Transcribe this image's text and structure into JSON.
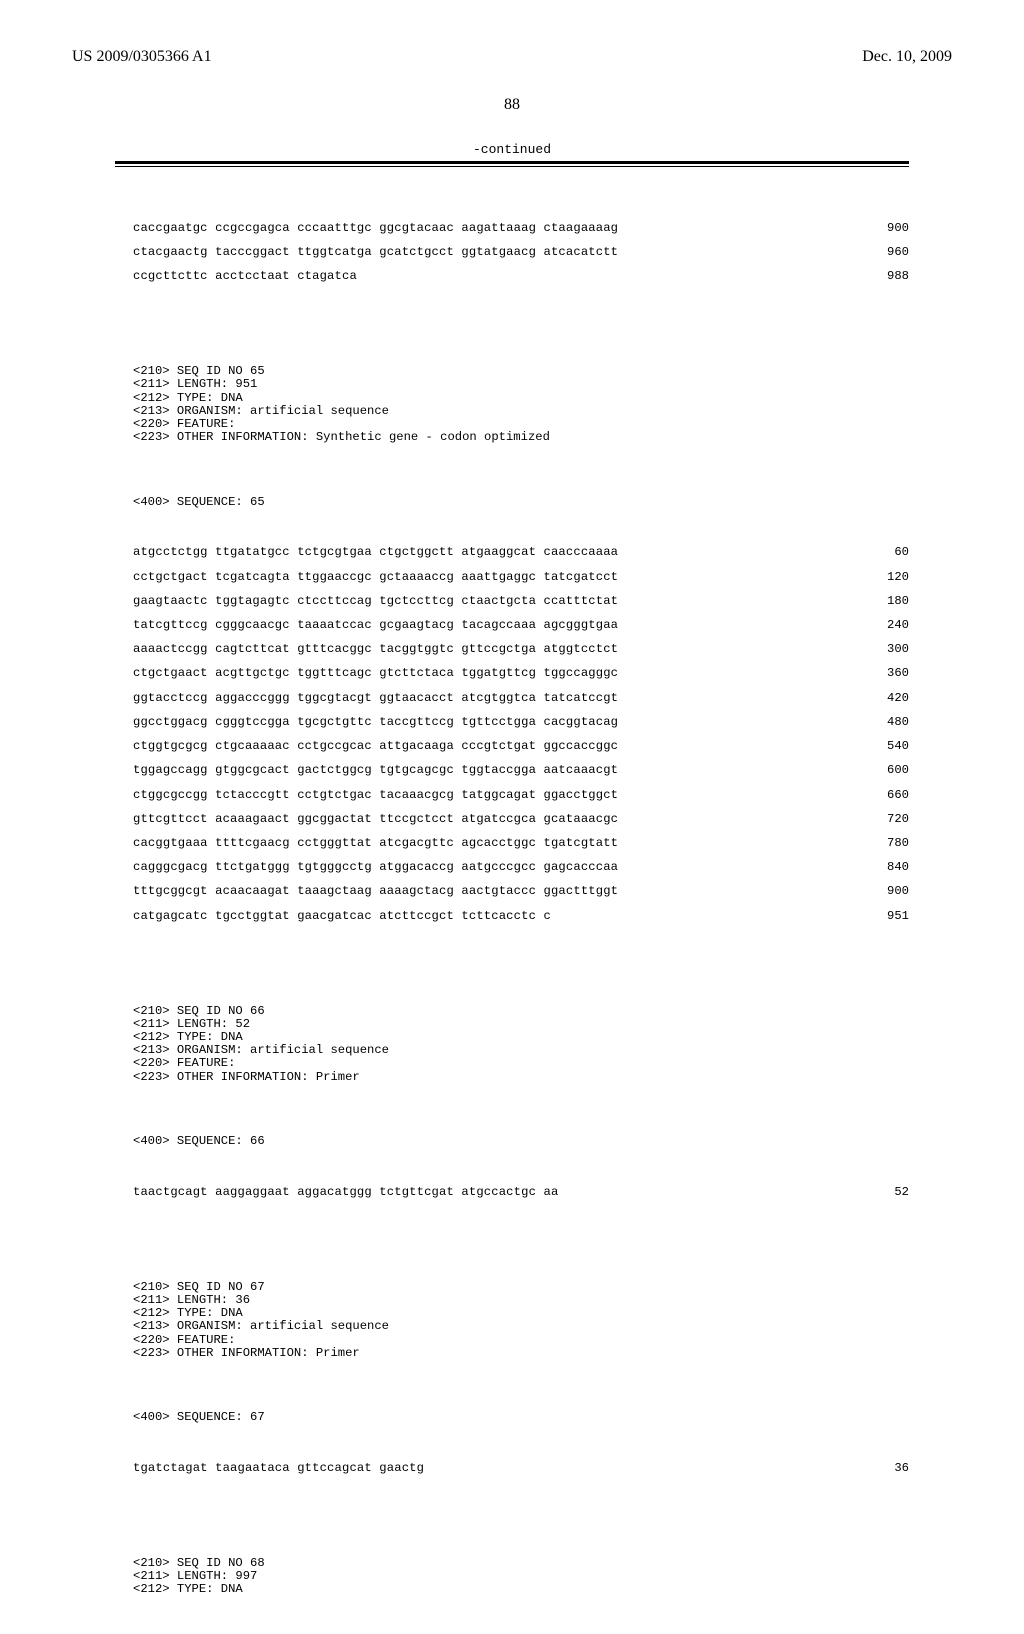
{
  "header": {
    "pubno": "US 2009/0305366 A1",
    "date": "Dec. 10, 2009"
  },
  "page_number": "88",
  "continued_label": "-continued",
  "tail64": {
    "rows": [
      {
        "t": "caccgaatgc ccgccgagca cccaatttgc ggcgtacaac aagattaaag ctaagaaaag",
        "n": "900"
      },
      {
        "t": "ctacgaactg tacccggact ttggtcatga gcatctgcct ggtatgaacg atcacatctt",
        "n": "960"
      },
      {
        "t": "ccgcttcttc acctcctaat ctagatca",
        "n": "988"
      }
    ]
  },
  "seq65": {
    "meta": [
      "<210> SEQ ID NO 65",
      "<211> LENGTH: 951",
      "<212> TYPE: DNA",
      "<213> ORGANISM: artificial sequence",
      "<220> FEATURE:",
      "<223> OTHER INFORMATION: Synthetic gene - codon optimized"
    ],
    "seq400": "<400> SEQUENCE: 65",
    "rows": [
      {
        "t": "atgcctctgg ttgatatgcc tctgcgtgaa ctgctggctt atgaaggcat caacccaaaa",
        "n": "60"
      },
      {
        "t": "cctgctgact tcgatcagta ttggaaccgc gctaaaaccg aaattgaggc tatcgatcct",
        "n": "120"
      },
      {
        "t": "gaagtaactc tggtagagtc ctccttccag tgctccttcg ctaactgcta ccatttctat",
        "n": "180"
      },
      {
        "t": "tatcgttccg cgggcaacgc taaaatccac gcgaagtacg tacagccaaa agcgggtgaa",
        "n": "240"
      },
      {
        "t": "aaaactccgg cagtcttcat gtttcacggc tacggtggtc gttccgctga atggtcctct",
        "n": "300"
      },
      {
        "t": "ctgctgaact acgttgctgc tggtttcagc gtcttctaca tggatgttcg tggccagggc",
        "n": "360"
      },
      {
        "t": "ggtacctccg aggacccggg tggcgtacgt ggtaacacct atcgtggtca tatcatccgt",
        "n": "420"
      },
      {
        "t": "ggcctggacg cgggtccgga tgcgctgttc taccgttccg tgttcctgga cacggtacag",
        "n": "480"
      },
      {
        "t": "ctggtgcgcg ctgcaaaaac cctgccgcac attgacaaga cccgtctgat ggccaccggc",
        "n": "540"
      },
      {
        "t": "tggagccagg gtggcgcact gactctggcg tgtgcagcgc tggtaccgga aatcaaacgt",
        "n": "600"
      },
      {
        "t": "ctggcgccgg tctacccgtt cctgtctgac tacaaacgcg tatggcagat ggacctggct",
        "n": "660"
      },
      {
        "t": "gttcgttcct acaaagaact ggcggactat ttccgctcct atgatccgca gcataaacgc",
        "n": "720"
      },
      {
        "t": "cacggtgaaa ttttcgaacg cctgggttat atcgacgttc agcacctggc tgatcgtatt",
        "n": "780"
      },
      {
        "t": "cagggcgacg ttctgatggg tgtgggcctg atggacaccg aatgcccgcc gagcacccaa",
        "n": "840"
      },
      {
        "t": "tttgcggcgt acaacaagat taaagctaag aaaagctacg aactgtaccc ggactttggt",
        "n": "900"
      },
      {
        "t": "catgagcatc tgcctggtat gaacgatcac atcttccgct tcttcacctc c",
        "n": "951"
      }
    ]
  },
  "seq66": {
    "meta": [
      "<210> SEQ ID NO 66",
      "<211> LENGTH: 52",
      "<212> TYPE: DNA",
      "<213> ORGANISM: artificial sequence",
      "<220> FEATURE:",
      "<223> OTHER INFORMATION: Primer"
    ],
    "seq400": "<400> SEQUENCE: 66",
    "rows": [
      {
        "t": "taactgcagt aaggaggaat aggacatggg tctgttcgat atgccactgc aa",
        "n": "52"
      }
    ]
  },
  "seq67": {
    "meta": [
      "<210> SEQ ID NO 67",
      "<211> LENGTH: 36",
      "<212> TYPE: DNA",
      "<213> ORGANISM: artificial sequence",
      "<220> FEATURE:",
      "<223> OTHER INFORMATION: Primer"
    ],
    "seq400": "<400> SEQUENCE: 67",
    "rows": [
      {
        "t": "tgatctagat taagaataca gttccagcat gaactg",
        "n": "36"
      }
    ]
  },
  "seq68": {
    "meta": [
      "<210> SEQ ID NO 68",
      "<211> LENGTH: 997",
      "<212> TYPE: DNA"
    ]
  }
}
